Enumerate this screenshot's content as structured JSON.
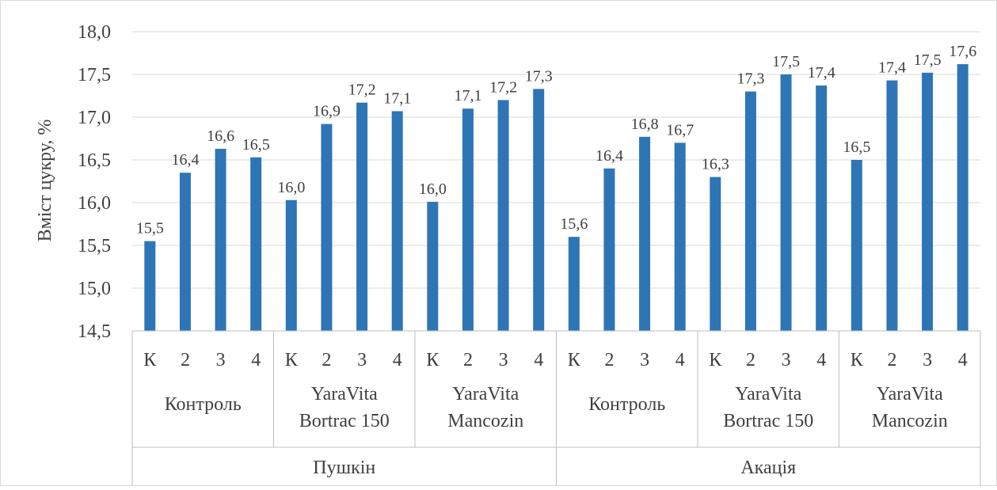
{
  "colors": {
    "bar": "#2E75B6",
    "axis": "#BFBFBF",
    "grid": "#D9D9D9",
    "text": "#404040"
  },
  "chart_data": {
    "type": "bar",
    "title": "",
    "ylabel": "Вміст цукру, %",
    "xlabel": "",
    "ylim": [
      14.5,
      18.0
    ],
    "yticks": [
      "14,5",
      "15,0",
      "15,5",
      "16,0",
      "16,5",
      "17,0",
      "17,5",
      "18,0"
    ],
    "ytick_values": [
      14.5,
      15.0,
      15.5,
      16.0,
      16.5,
      17.0,
      17.5,
      18.0
    ],
    "grid": true,
    "legend": "none",
    "categories": [
      "К",
      "2",
      "3",
      "4",
      "К",
      "2",
      "3",
      "4",
      "К",
      "2",
      "3",
      "4",
      "К",
      "2",
      "3",
      "4",
      "К",
      "2",
      "3",
      "4",
      "К",
      "2",
      "3",
      "4"
    ],
    "values": [
      15.55,
      16.35,
      16.63,
      16.53,
      16.03,
      16.92,
      17.17,
      17.07,
      16.01,
      17.1,
      17.2,
      17.33,
      15.6,
      16.4,
      16.77,
      16.7,
      16.3,
      17.3,
      17.5,
      17.37,
      16.5,
      17.43,
      17.52,
      17.62
    ],
    "data_labels": [
      "15,5",
      "16,4",
      "16,6",
      "16,5",
      "16,0",
      "16,9",
      "17,2",
      "17,1",
      "16,0",
      "17,1",
      "17,2",
      "17,3",
      "15,6",
      "16,4",
      "16,8",
      "16,7",
      "16,3",
      "17,3",
      "17,5",
      "17,4",
      "16,5",
      "17,4",
      "17,5",
      "17,6"
    ],
    "groups": [
      {
        "lines": [
          "Контроль"
        ],
        "span": 4
      },
      {
        "lines": [
          "YaraVita",
          "Bortrac 150"
        ],
        "span": 4
      },
      {
        "lines": [
          "YaraVita",
          "Mancozin"
        ],
        "span": 4
      },
      {
        "lines": [
          "Контроль"
        ],
        "span": 4
      },
      {
        "lines": [
          "YaraVita",
          "Bortrac 150"
        ],
        "span": 4
      },
      {
        "lines": [
          "YaraVita",
          "Mancozin"
        ],
        "span": 4
      }
    ],
    "supergroups": [
      {
        "label": "Пушкін",
        "span": 12
      },
      {
        "label": "Акація",
        "span": 12
      }
    ]
  }
}
